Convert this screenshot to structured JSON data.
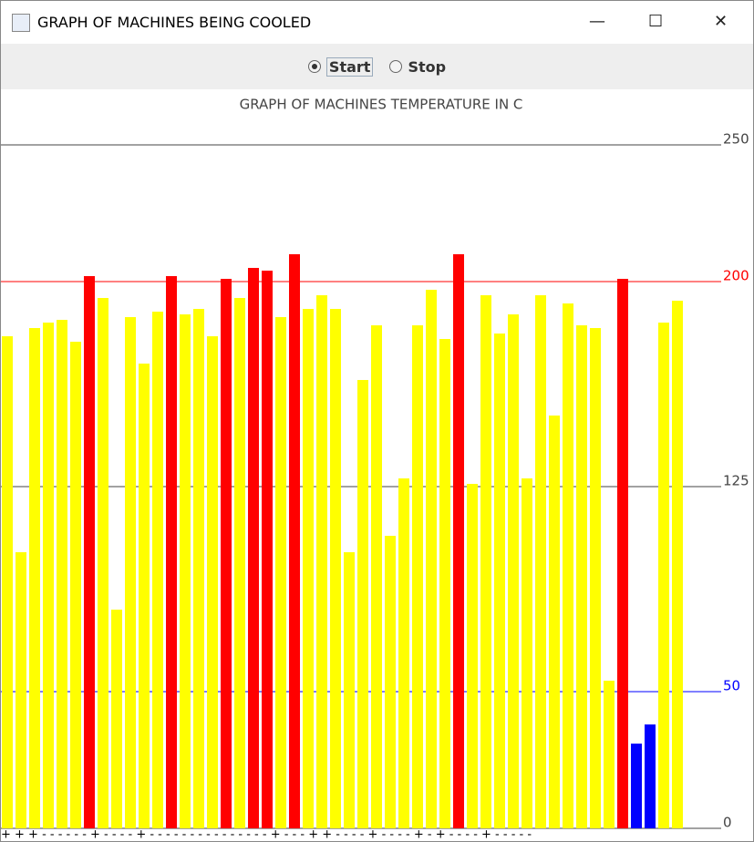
{
  "window": {
    "title": "GRAPH OF MACHINES BEING COOLED"
  },
  "controls": {
    "radios": [
      {
        "label": "Start",
        "selected": true
      },
      {
        "label": "Stop",
        "selected": false
      }
    ]
  },
  "chart_data": {
    "type": "bar",
    "title": "GRAPH OF MACHINES TEMPERATURE IN C",
    "values": [
      180,
      101,
      183,
      185,
      186,
      178,
      202,
      194,
      80,
      187,
      170,
      189,
      202,
      188,
      190,
      180,
      201,
      194,
      205,
      204,
      187,
      210,
      190,
      195,
      190,
      101,
      164,
      184,
      107,
      128,
      184,
      197,
      179,
      210,
      126,
      195,
      181,
      188,
      128,
      195,
      151,
      192,
      184,
      183,
      54,
      201,
      31,
      38,
      185,
      193
    ],
    "colors": [
      "#ffff00",
      "#ffff00",
      "#ffff00",
      "#ffff00",
      "#ffff00",
      "#ffff00",
      "#ff0000",
      "#ffff00",
      "#ffff00",
      "#ffff00",
      "#ffff00",
      "#ffff00",
      "#ff0000",
      "#ffff00",
      "#ffff00",
      "#ffff00",
      "#ff0000",
      "#ffff00",
      "#ff0000",
      "#ff0000",
      "#ffff00",
      "#ff0000",
      "#ffff00",
      "#ffff00",
      "#ffff00",
      "#ffff00",
      "#ffff00",
      "#ffff00",
      "#ffff00",
      "#ffff00",
      "#ffff00",
      "#ffff00",
      "#ffff00",
      "#ff0000",
      "#ffff00",
      "#ffff00",
      "#ffff00",
      "#ffff00",
      "#ffff00",
      "#ffff00",
      "#ffff00",
      "#ffff00",
      "#ffff00",
      "#ffff00",
      "#ffff00",
      "#ff0000",
      "#0000ff",
      "#0000ff",
      "#ffff00",
      "#ffff00"
    ],
    "ylim": [
      0,
      250
    ],
    "yticks": [
      0,
      50,
      125,
      200,
      250
    ],
    "ytick_colors": [
      "#444444",
      "#0000ff",
      "#444444",
      "#ff0000",
      "#444444"
    ],
    "grid": true,
    "footer_marks": "+ + + - - - - - - + - - - - + - - - - - - - - - - - - - - - + - - - + + - - - - + - - - - + - + - - - - + - - - - -"
  }
}
